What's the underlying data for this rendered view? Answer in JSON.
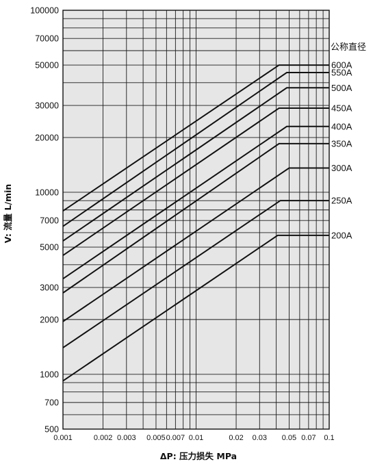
{
  "chart_data": {
    "type": "line",
    "xlabel": "ΔP: 压力损失 MPa",
    "ylabel": "V: 流量 L/min",
    "x_scale": "log",
    "y_scale": "log",
    "xlim": [
      0.001,
      0.1
    ],
    "ylim": [
      500,
      100000
    ],
    "grid": true,
    "legend_title": "公称直径",
    "x_ticks": [
      {
        "value": 0.001,
        "label": "0.001"
      },
      {
        "value": 0.002,
        "label": "0.002"
      },
      {
        "value": 0.003,
        "label": "0.003"
      },
      {
        "value": 0.005,
        "label": "0.005"
      },
      {
        "value": 0.007,
        "label": "0.007"
      },
      {
        "value": 0.01,
        "label": "0.01"
      },
      {
        "value": 0.02,
        "label": "0.02"
      },
      {
        "value": 0.03,
        "label": "0.03"
      },
      {
        "value": 0.05,
        "label": "0.05"
      },
      {
        "value": 0.07,
        "label": "0.07"
      },
      {
        "value": 0.1,
        "label": "0.1"
      }
    ],
    "y_ticks": [
      {
        "value": 500,
        "label": "500"
      },
      {
        "value": 700,
        "label": "700"
      },
      {
        "value": 1000,
        "label": "1000"
      },
      {
        "value": 2000,
        "label": "2000"
      },
      {
        "value": 3000,
        "label": "3000"
      },
      {
        "value": 5000,
        "label": "5000"
      },
      {
        "value": 7000,
        "label": "7000"
      },
      {
        "value": 10000,
        "label": "10000"
      },
      {
        "value": 20000,
        "label": "20000"
      },
      {
        "value": 30000,
        "label": "30000"
      },
      {
        "value": 50000,
        "label": "50000"
      },
      {
        "value": 70000,
        "label": "70000"
      },
      {
        "value": 100000,
        "label": "100000"
      }
    ],
    "series": [
      {
        "name": "600A",
        "points": [
          [
            0.001,
            7900
          ],
          [
            0.042,
            50000
          ],
          [
            0.1,
            50000
          ]
        ]
      },
      {
        "name": "550A",
        "points": [
          [
            0.001,
            6500
          ],
          [
            0.048,
            45500
          ],
          [
            0.1,
            45500
          ]
        ]
      },
      {
        "name": "500A",
        "points": [
          [
            0.001,
            5400
          ],
          [
            0.048,
            37500
          ],
          [
            0.1,
            37500
          ]
        ]
      },
      {
        "name": "450A",
        "points": [
          [
            0.001,
            4500
          ],
          [
            0.042,
            29000
          ],
          [
            0.1,
            29000
          ]
        ]
      },
      {
        "name": "400A",
        "points": [
          [
            0.001,
            3350
          ],
          [
            0.048,
            23000
          ],
          [
            0.1,
            23000
          ]
        ]
      },
      {
        "name": "350A",
        "points": [
          [
            0.001,
            2800
          ],
          [
            0.042,
            18500
          ],
          [
            0.1,
            18500
          ]
        ]
      },
      {
        "name": "300A",
        "points": [
          [
            0.001,
            1950
          ],
          [
            0.05,
            13600
          ],
          [
            0.1,
            13600
          ]
        ]
      },
      {
        "name": "250A",
        "points": [
          [
            0.001,
            1400
          ],
          [
            0.043,
            9000
          ],
          [
            0.1,
            9000
          ]
        ]
      },
      {
        "name": "200A",
        "points": [
          [
            0.001,
            920
          ],
          [
            0.041,
            5800
          ],
          [
            0.1,
            5800
          ]
        ]
      }
    ]
  }
}
